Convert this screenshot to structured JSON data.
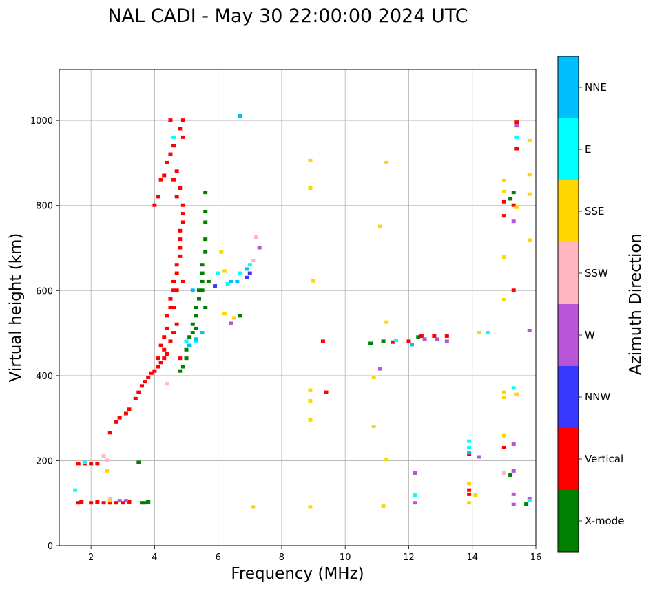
{
  "chart_data": {
    "type": "scatter",
    "title": "NAL CADI - May 30 22:00:00 2024 UTC",
    "xlabel": "Frequency (MHz)",
    "ylabel": "Virtual height (km)",
    "xlim": [
      1,
      16
    ],
    "ylim": [
      0,
      1120
    ],
    "xticks": [
      2,
      4,
      6,
      8,
      10,
      12,
      14,
      16
    ],
    "yticks": [
      0,
      200,
      400,
      600,
      800,
      1000
    ],
    "grid": true,
    "colorbar": {
      "label": "Azimuth Direction",
      "categories": [
        "X-mode",
        "Vertical",
        "NNW",
        "W",
        "SSW",
        "SSE",
        "E",
        "NNE"
      ],
      "colors": [
        "#008000",
        "#ff0000",
        "#3838ff",
        "#b855d6",
        "#ffb6c1",
        "#ffd700",
        "#00ffff",
        "#00bfff"
      ]
    },
    "series": [
      {
        "name": "X-mode",
        "points": [
          [
            3.6,
            100
          ],
          [
            3.7,
            100
          ],
          [
            3.8,
            102
          ],
          [
            3.5,
            195
          ],
          [
            4.8,
            410
          ],
          [
            4.9,
            420
          ],
          [
            5.0,
            440
          ],
          [
            5.0,
            460
          ],
          [
            5.1,
            470
          ],
          [
            5.1,
            490
          ],
          [
            5.2,
            500
          ],
          [
            5.2,
            520
          ],
          [
            5.3,
            540
          ],
          [
            5.3,
            560
          ],
          [
            5.4,
            580
          ],
          [
            5.4,
            600
          ],
          [
            5.5,
            620
          ],
          [
            5.5,
            640
          ],
          [
            5.5,
            660
          ],
          [
            5.6,
            690
          ],
          [
            5.6,
            720
          ],
          [
            5.6,
            760
          ],
          [
            5.6,
            785
          ],
          [
            5.6,
            830
          ],
          [
            5.5,
            600
          ],
          [
            5.6,
            560
          ],
          [
            5.3,
            510
          ],
          [
            5.7,
            620
          ],
          [
            6.7,
            540
          ],
          [
            10.8,
            475
          ],
          [
            11.2,
            480
          ],
          [
            12.3,
            490
          ],
          [
            15.2,
            815
          ],
          [
            15.3,
            830
          ],
          [
            15.2,
            165
          ],
          [
            15.7,
            97
          ]
        ]
      },
      {
        "name": "Vertical",
        "points": [
          [
            1.6,
            100
          ],
          [
            1.7,
            102
          ],
          [
            2.0,
            100
          ],
          [
            2.2,
            102
          ],
          [
            2.4,
            100
          ],
          [
            2.6,
            100
          ],
          [
            2.8,
            100
          ],
          [
            3.0,
            100
          ],
          [
            3.2,
            102
          ],
          [
            1.6,
            192
          ],
          [
            1.8,
            192
          ],
          [
            2.0,
            192
          ],
          [
            2.2,
            192
          ],
          [
            2.6,
            265
          ],
          [
            2.8,
            290
          ],
          [
            2.9,
            300
          ],
          [
            3.1,
            310
          ],
          [
            3.2,
            320
          ],
          [
            3.4,
            345
          ],
          [
            3.5,
            360
          ],
          [
            3.6,
            375
          ],
          [
            3.7,
            385
          ],
          [
            3.8,
            395
          ],
          [
            3.9,
            405
          ],
          [
            4.0,
            410
          ],
          [
            4.1,
            420
          ],
          [
            4.2,
            430
          ],
          [
            4.3,
            440
          ],
          [
            4.4,
            450
          ],
          [
            4.2,
            470
          ],
          [
            4.3,
            490
          ],
          [
            4.4,
            510
          ],
          [
            4.4,
            540
          ],
          [
            4.5,
            560
          ],
          [
            4.5,
            580
          ],
          [
            4.6,
            600
          ],
          [
            4.6,
            620
          ],
          [
            4.7,
            640
          ],
          [
            4.7,
            660
          ],
          [
            4.8,
            680
          ],
          [
            4.8,
            700
          ],
          [
            4.8,
            720
          ],
          [
            4.8,
            740
          ],
          [
            4.9,
            760
          ],
          [
            4.9,
            780
          ],
          [
            4.9,
            800
          ],
          [
            4.7,
            820
          ],
          [
            4.8,
            840
          ],
          [
            4.6,
            860
          ],
          [
            4.7,
            880
          ],
          [
            4.4,
            900
          ],
          [
            4.5,
            920
          ],
          [
            4.6,
            940
          ],
          [
            4.9,
            960
          ],
          [
            4.8,
            980
          ],
          [
            4.5,
            1000
          ],
          [
            4.9,
            1000
          ],
          [
            4.1,
            820
          ],
          [
            4.0,
            800
          ],
          [
            4.2,
            860
          ],
          [
            4.3,
            870
          ],
          [
            4.6,
            500
          ],
          [
            4.7,
            520
          ],
          [
            4.8,
            440
          ],
          [
            4.1,
            440
          ],
          [
            4.3,
            460
          ],
          [
            4.5,
            480
          ],
          [
            4.6,
            560
          ],
          [
            4.7,
            600
          ],
          [
            4.9,
            620
          ],
          [
            9.3,
            480
          ],
          [
            9.4,
            360
          ],
          [
            11.5,
            478
          ],
          [
            12.0,
            480
          ],
          [
            12.4,
            492
          ],
          [
            12.8,
            492
          ],
          [
            13.2,
            492
          ],
          [
            13.9,
            215
          ],
          [
            13.9,
            130
          ],
          [
            13.9,
            120
          ],
          [
            15.0,
            230
          ],
          [
            15.0,
            775
          ],
          [
            15.0,
            808
          ],
          [
            15.3,
            800
          ],
          [
            15.4,
            933
          ],
          [
            15.4,
            995
          ],
          [
            15.3,
            600
          ]
        ]
      },
      {
        "name": "NNW",
        "points": [
          [
            6.9,
            630
          ],
          [
            7.0,
            640
          ],
          [
            5.9,
            610
          ]
        ]
      },
      {
        "name": "W",
        "points": [
          [
            2.9,
            105
          ],
          [
            3.1,
            105
          ],
          [
            6.4,
            522
          ],
          [
            7.3,
            700
          ],
          [
            11.1,
            415
          ],
          [
            12.2,
            100
          ],
          [
            12.2,
            170
          ],
          [
            12.5,
            485
          ],
          [
            12.9,
            485
          ],
          [
            13.2,
            480
          ],
          [
            14.2,
            208
          ],
          [
            15.3,
            238
          ],
          [
            15.3,
            175
          ],
          [
            15.3,
            120
          ],
          [
            15.3,
            96
          ],
          [
            15.3,
            762
          ],
          [
            15.4,
            987
          ],
          [
            15.8,
            505
          ],
          [
            15.8,
            110
          ]
        ]
      },
      {
        "name": "SSW",
        "points": [
          [
            2.4,
            210
          ],
          [
            2.5,
            200
          ],
          [
            2.6,
            110
          ],
          [
            4.4,
            380
          ],
          [
            7.1,
            670
          ],
          [
            7.2,
            725
          ],
          [
            15.0,
            170
          ]
        ]
      },
      {
        "name": "SSE",
        "points": [
          [
            2.5,
            175
          ],
          [
            2.6,
            105
          ],
          [
            6.1,
            690
          ],
          [
            6.2,
            645
          ],
          [
            6.2,
            545
          ],
          [
            6.5,
            535
          ],
          [
            7.1,
            90
          ],
          [
            8.9,
            905
          ],
          [
            8.9,
            840
          ],
          [
            8.9,
            365
          ],
          [
            8.9,
            340
          ],
          [
            8.9,
            295
          ],
          [
            8.9,
            90
          ],
          [
            9.0,
            622
          ],
          [
            10.9,
            395
          ],
          [
            10.9,
            280
          ],
          [
            11.1,
            750
          ],
          [
            11.2,
            92
          ],
          [
            11.3,
            900
          ],
          [
            11.3,
            525
          ],
          [
            11.3,
            202
          ],
          [
            13.9,
            145
          ],
          [
            13.9,
            100
          ],
          [
            14.1,
            118
          ],
          [
            14.2,
            500
          ],
          [
            15.0,
            858
          ],
          [
            15.0,
            832
          ],
          [
            15.0,
            678
          ],
          [
            15.0,
            578
          ],
          [
            15.0,
            360
          ],
          [
            15.0,
            348
          ],
          [
            15.0,
            258
          ],
          [
            15.4,
            355
          ],
          [
            15.4,
            795
          ],
          [
            15.8,
            952
          ],
          [
            15.8,
            872
          ],
          [
            15.8,
            826
          ],
          [
            15.8,
            718
          ]
        ]
      },
      {
        "name": "E",
        "points": [
          [
            1.5,
            130
          ],
          [
            1.8,
            195
          ],
          [
            4.6,
            960
          ],
          [
            5.0,
            480
          ],
          [
            5.3,
            480
          ],
          [
            6.0,
            640
          ],
          [
            6.3,
            615
          ],
          [
            6.7,
            640
          ],
          [
            7.0,
            660
          ],
          [
            11.6,
            482
          ],
          [
            12.2,
            118
          ],
          [
            13.9,
            245
          ],
          [
            13.9,
            230
          ],
          [
            14.5,
            500
          ],
          [
            15.3,
            370
          ],
          [
            15.4,
            960
          ],
          [
            15.8,
            105
          ]
        ]
      },
      {
        "name": "NNE",
        "points": [
          [
            5.1,
            470
          ],
          [
            5.3,
            485
          ],
          [
            5.5,
            500
          ],
          [
            5.2,
            600
          ],
          [
            6.4,
            620
          ],
          [
            6.6,
            620
          ],
          [
            6.7,
            1010
          ],
          [
            6.9,
            650
          ],
          [
            12.1,
            472
          ],
          [
            13.9,
            218
          ]
        ]
      }
    ]
  }
}
